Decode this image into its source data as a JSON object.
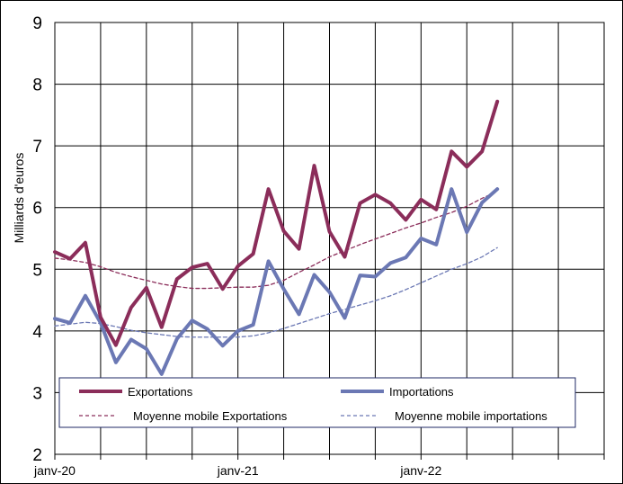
{
  "chart_data": {
    "type": "line",
    "ylabel": "Milliards d'euros",
    "xlabel": "",
    "ylim": [
      2,
      9
    ],
    "yticks": [
      2,
      3,
      4,
      5,
      6,
      7,
      8,
      9
    ],
    "x_start": "janv-20",
    "x_months": 36,
    "x_tick_labels": [
      {
        "index": 0,
        "label": "janv-20"
      },
      {
        "index": 12,
        "label": "janv-21"
      },
      {
        "index": 24,
        "label": "janv-22"
      }
    ],
    "grid": true,
    "legend_placement": "bottom-inside",
    "series": [
      {
        "name": "Exportations",
        "style": "solid",
        "color": "#8B2D5A",
        "values": [
          5.28,
          5.17,
          5.43,
          4.22,
          3.77,
          4.38,
          4.7,
          4.06,
          4.84,
          5.03,
          5.09,
          4.68,
          5.05,
          5.25,
          6.3,
          5.62,
          5.33,
          6.68,
          5.61,
          5.2,
          6.07,
          6.21,
          6.07,
          5.8,
          6.13,
          5.97,
          6.91,
          6.66,
          6.91,
          7.72
        ]
      },
      {
        "name": "Importations",
        "style": "solid",
        "color": "#6B78B4",
        "values": [
          4.2,
          4.13,
          4.57,
          4.13,
          3.49,
          3.86,
          3.71,
          3.3,
          3.87,
          4.17,
          4.03,
          3.76,
          4.0,
          4.1,
          5.13,
          4.68,
          4.27,
          4.91,
          4.63,
          4.21,
          4.9,
          4.88,
          5.1,
          5.19,
          5.5,
          5.4,
          6.3,
          5.6,
          6.08,
          6.3
        ]
      },
      {
        "name": "Moyenne mobile Exportations",
        "style": "dashed",
        "color": "#8B2D5A",
        "values": [
          5.18,
          5.15,
          5.11,
          5.04,
          4.95,
          4.88,
          4.82,
          4.76,
          4.72,
          4.69,
          4.69,
          4.7,
          4.71,
          4.71,
          4.74,
          4.82,
          4.95,
          5.07,
          5.2,
          5.3,
          5.4,
          5.49,
          5.58,
          5.67,
          5.75,
          5.84,
          5.92,
          6.02,
          6.15,
          6.26
        ]
      },
      {
        "name": "Moyenne mobile importations",
        "style": "dashed",
        "color": "#6B78B4",
        "values": [
          4.08,
          4.11,
          4.14,
          4.12,
          4.07,
          4.01,
          3.97,
          3.94,
          3.91,
          3.9,
          3.9,
          3.9,
          3.9,
          3.92,
          3.97,
          4.04,
          4.12,
          4.2,
          4.28,
          4.35,
          4.42,
          4.49,
          4.57,
          4.67,
          4.78,
          4.89,
          5.0,
          5.09,
          5.2,
          5.35
        ]
      }
    ]
  }
}
